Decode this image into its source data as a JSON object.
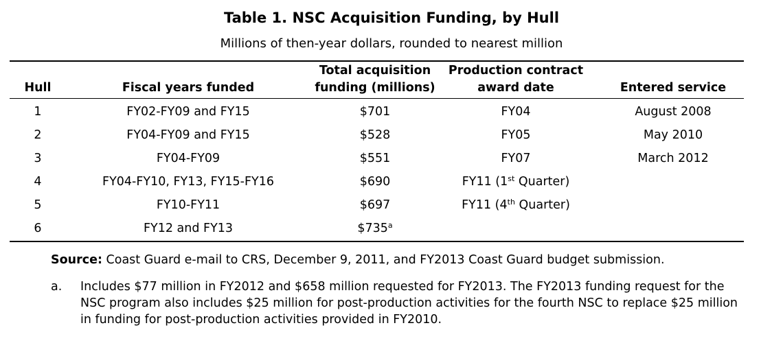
{
  "title": "Table 1. NSC Acquisition Funding, by Hull",
  "subtitle": "Millions of then-year dollars, rounded to nearest million",
  "headers": {
    "hull": "Hull",
    "fiscal_years": "Fiscal years funded",
    "total_line1": "Total acquisition",
    "total_line2": "funding (millions)",
    "award_line1": "Production contract",
    "award_line2": "award date",
    "service": "Entered service"
  },
  "rows": [
    {
      "hull": "1",
      "fiscal_years": "FY02-FY09 and FY15",
      "total": "$701",
      "total_note": "",
      "award": "FY04",
      "award_sup": "",
      "award_suffix": "",
      "service": "August 2008"
    },
    {
      "hull": "2",
      "fiscal_years": "FY04-FY09 and FY15",
      "total": "$528",
      "total_note": "",
      "award": "FY05",
      "award_sup": "",
      "award_suffix": "",
      "service": "May 2010"
    },
    {
      "hull": "3",
      "fiscal_years": "FY04-FY09",
      "total": "$551",
      "total_note": "",
      "award": "FY07",
      "award_sup": "",
      "award_suffix": "",
      "service": "March 2012"
    },
    {
      "hull": "4",
      "fiscal_years": "FY04-FY10, FY13, FY15-FY16",
      "total": "$690",
      "total_note": "",
      "award": "FY11 (1",
      "award_sup": "st",
      "award_suffix": " Quarter)",
      "service": ""
    },
    {
      "hull": "5",
      "fiscal_years": "FY10-FY11",
      "total": "$697",
      "total_note": "",
      "award": "FY11 (4",
      "award_sup": "th",
      "award_suffix": " Quarter)",
      "service": ""
    },
    {
      "hull": "6",
      "fiscal_years": "FY12 and FY13",
      "total": "$735",
      "total_note": "a",
      "award": "",
      "award_sup": "",
      "award_suffix": "",
      "service": ""
    }
  ],
  "source": {
    "label": "Source:",
    "text": " Coast Guard e-mail to CRS, December 9, 2011, and FY2013 Coast Guard budget submission."
  },
  "footnote": {
    "marker": "a.",
    "text": "Includes $77 million in FY2012 and $658 million requested for FY2013. The FY2013 funding request for the NSC program also includes $25 million for post-production activities for the fourth NSC to replace $25 million in funding for post-production activities provided in FY2010."
  }
}
